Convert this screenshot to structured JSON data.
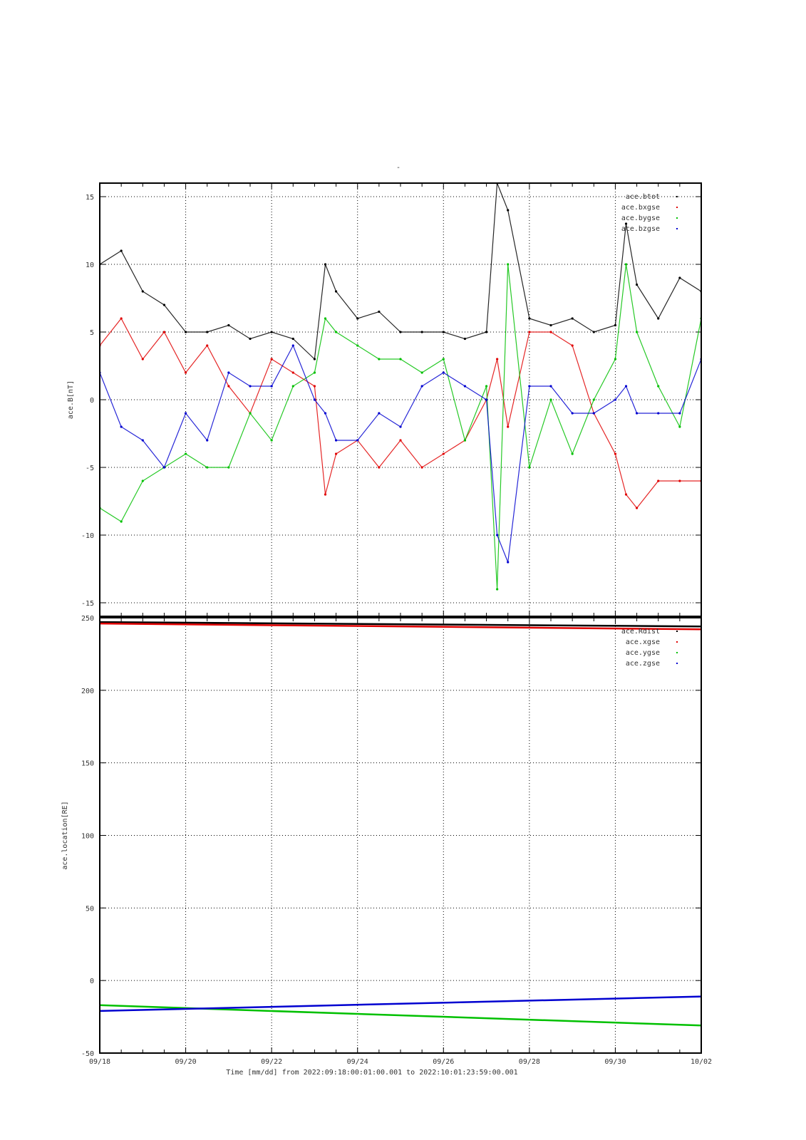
{
  "page": {
    "title": "-"
  },
  "chart_data": [
    {
      "type": "scatter",
      "title": "",
      "xlabel": "",
      "ylabel": "ace.B[nT]",
      "xlim": [
        "2022-09-18",
        "2022-10-02"
      ],
      "ylim": [
        -16,
        16
      ],
      "y_ticks": [
        15,
        10,
        5,
        0,
        -5,
        -10,
        -15
      ],
      "grid": true,
      "legend_position": "top-right",
      "series": [
        {
          "name": "ace.btot",
          "color": "#000000",
          "x": [
            "2022-09-18T00:00",
            "2022-09-18T12:00",
            "2022-09-19T00:00",
            "2022-09-19T12:00",
            "2022-09-20T00:00",
            "2022-09-20T12:00",
            "2022-09-21T00:00",
            "2022-09-21T12:00",
            "2022-09-22T00:00",
            "2022-09-22T12:00",
            "2022-09-23T00:00",
            "2022-09-23T06:00",
            "2022-09-23T12:00",
            "2022-09-24T00:00",
            "2022-09-24T12:00",
            "2022-09-25T00:00",
            "2022-09-25T12:00",
            "2022-09-26T00:00",
            "2022-09-26T12:00",
            "2022-09-27T00:00",
            "2022-09-27T06:00",
            "2022-09-27T12:00",
            "2022-09-28T00:00",
            "2022-09-28T12:00",
            "2022-09-29T00:00",
            "2022-09-29T12:00",
            "2022-09-30T00:00",
            "2022-09-30T06:00",
            "2022-09-30T12:00",
            "2022-10-01T00:00",
            "2022-10-01T12:00",
            "2022-10-02T00:00"
          ],
          "y": [
            10,
            11,
            8,
            7,
            5,
            5,
            5.5,
            4.5,
            5,
            4.5,
            3,
            10,
            8,
            6,
            6.5,
            5,
            5,
            5,
            4.5,
            5,
            16,
            14,
            6,
            5.5,
            6,
            5,
            5.5,
            13,
            8.5,
            6,
            9,
            8
          ]
        },
        {
          "name": "ace.bxgse",
          "color": "#e00000",
          "x": [
            "2022-09-18T00:00",
            "2022-09-18T12:00",
            "2022-09-19T00:00",
            "2022-09-19T12:00",
            "2022-09-20T00:00",
            "2022-09-20T12:00",
            "2022-09-21T00:00",
            "2022-09-21T12:00",
            "2022-09-22T00:00",
            "2022-09-22T12:00",
            "2022-09-23T00:00",
            "2022-09-23T06:00",
            "2022-09-23T12:00",
            "2022-09-24T00:00",
            "2022-09-24T12:00",
            "2022-09-25T00:00",
            "2022-09-25T12:00",
            "2022-09-26T00:00",
            "2022-09-26T12:00",
            "2022-09-27T00:00",
            "2022-09-27T06:00",
            "2022-09-27T12:00",
            "2022-09-28T00:00",
            "2022-09-28T12:00",
            "2022-09-29T00:00",
            "2022-09-29T12:00",
            "2022-09-30T00:00",
            "2022-09-30T06:00",
            "2022-09-30T12:00",
            "2022-10-01T00:00",
            "2022-10-01T12:00",
            "2022-10-02T00:00"
          ],
          "y": [
            4,
            6,
            3,
            5,
            2,
            4,
            1,
            -1,
            3,
            2,
            1,
            -7,
            -4,
            -3,
            -5,
            -3,
            -5,
            -4,
            -3,
            0,
            3,
            -2,
            5,
            5,
            4,
            -1,
            -4,
            -7,
            -8,
            -6,
            -6,
            -6
          ]
        },
        {
          "name": "ace.bygse",
          "color": "#00c000",
          "x": [
            "2022-09-18T00:00",
            "2022-09-18T12:00",
            "2022-09-19T00:00",
            "2022-09-19T12:00",
            "2022-09-20T00:00",
            "2022-09-20T12:00",
            "2022-09-21T00:00",
            "2022-09-21T12:00",
            "2022-09-22T00:00",
            "2022-09-22T12:00",
            "2022-09-23T00:00",
            "2022-09-23T06:00",
            "2022-09-23T12:00",
            "2022-09-24T00:00",
            "2022-09-24T12:00",
            "2022-09-25T00:00",
            "2022-09-25T12:00",
            "2022-09-26T00:00",
            "2022-09-26T12:00",
            "2022-09-27T00:00",
            "2022-09-27T06:00",
            "2022-09-27T12:00",
            "2022-09-28T00:00",
            "2022-09-28T12:00",
            "2022-09-29T00:00",
            "2022-09-29T12:00",
            "2022-09-30T00:00",
            "2022-09-30T06:00",
            "2022-09-30T12:00",
            "2022-10-01T00:00",
            "2022-10-01T12:00",
            "2022-10-02T00:00"
          ],
          "y": [
            -8,
            -9,
            -6,
            -5,
            -4,
            -5,
            -5,
            -1,
            -3,
            1,
            2,
            6,
            5,
            4,
            3,
            3,
            2,
            3,
            -3,
            1,
            -14,
            10,
            -5,
            0,
            -4,
            0,
            3,
            10,
            5,
            1,
            -2,
            6
          ]
        },
        {
          "name": "ace.bzgse",
          "color": "#0000d0",
          "x": [
            "2022-09-18T00:00",
            "2022-09-18T12:00",
            "2022-09-19T00:00",
            "2022-09-19T12:00",
            "2022-09-20T00:00",
            "2022-09-20T12:00",
            "2022-09-21T00:00",
            "2022-09-21T12:00",
            "2022-09-22T00:00",
            "2022-09-22T12:00",
            "2022-09-23T00:00",
            "2022-09-23T06:00",
            "2022-09-23T12:00",
            "2022-09-24T00:00",
            "2022-09-24T12:00",
            "2022-09-25T00:00",
            "2022-09-25T12:00",
            "2022-09-26T00:00",
            "2022-09-26T12:00",
            "2022-09-27T00:00",
            "2022-09-27T06:00",
            "2022-09-27T12:00",
            "2022-09-28T00:00",
            "2022-09-28T12:00",
            "2022-09-29T00:00",
            "2022-09-29T12:00",
            "2022-09-30T00:00",
            "2022-09-30T06:00",
            "2022-09-30T12:00",
            "2022-10-01T00:00",
            "2022-10-01T12:00",
            "2022-10-02T00:00"
          ],
          "y": [
            2,
            -2,
            -3,
            -5,
            -1,
            -3,
            2,
            1,
            1,
            4,
            0,
            -1,
            -3,
            -3,
            -1,
            -2,
            1,
            2,
            1,
            0,
            -10,
            -12,
            1,
            1,
            -1,
            -1,
            0,
            1,
            -1,
            -1,
            -1,
            3
          ]
        }
      ]
    },
    {
      "type": "line",
      "title": "",
      "xlabel": "Time [mm/dd]  from 2022:09:18:00:01:00.001  to  2022:10:01:23:59:00.001",
      "ylabel": "ace.location[RE]",
      "xlim": [
        "2022-09-18",
        "2022-10-02"
      ],
      "x_ticks": [
        "09/18",
        "09/20",
        "09/22",
        "09/24",
        "09/26",
        "09/28",
        "09/30",
        "10/02"
      ],
      "ylim": [
        -50,
        250
      ],
      "y_ticks": [
        250,
        200,
        150,
        100,
        50,
        0,
        -50
      ],
      "grid": true,
      "legend_position": "top-right",
      "series": [
        {
          "name": "ace.Rdist",
          "color": "#000000",
          "x": [
            "2022-09-18",
            "2022-10-02"
          ],
          "y": [
            247,
            244
          ]
        },
        {
          "name": "ace.xgse",
          "color": "#e00000",
          "x": [
            "2022-09-18",
            "2022-10-02"
          ],
          "y": [
            246,
            242
          ]
        },
        {
          "name": "ace.ygse",
          "color": "#00c000",
          "x": [
            "2022-09-18",
            "2022-10-02"
          ],
          "y": [
            -17,
            -31
          ]
        },
        {
          "name": "ace.zgse",
          "color": "#0000d0",
          "x": [
            "2022-09-18",
            "2022-10-02"
          ],
          "y": [
            -21,
            -11
          ]
        }
      ]
    }
  ]
}
